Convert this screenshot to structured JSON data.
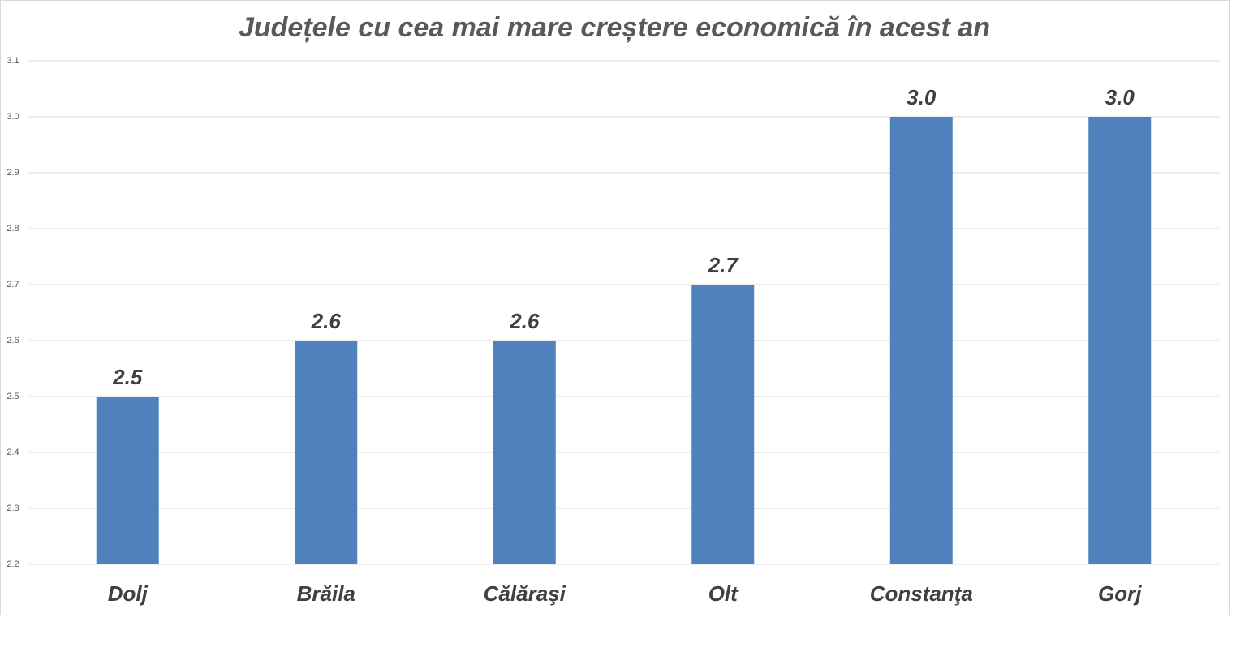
{
  "chart_data": {
    "type": "bar",
    "title": "Județele cu cea mai mare creștere economică în acest an",
    "categories": [
      "Dolj",
      "Brăila",
      "Călăraşi",
      "Olt",
      "Constanţa",
      "Gorj"
    ],
    "values": [
      2.5,
      2.6,
      2.6,
      2.7,
      3,
      3
    ],
    "value_labels": [
      "2.5",
      "2.6",
      "2.6",
      "2.7",
      "3.0",
      "3.0"
    ],
    "color": "#4f81bd",
    "ylim": [
      2.2,
      3.1
    ],
    "yticks": [
      2.2,
      2.3,
      2.4,
      2.5,
      2.6,
      2.7,
      2.8,
      2.9,
      {
        "value": 3,
        "label": "3.0"
      },
      3.1
    ],
    "grid": true
  }
}
